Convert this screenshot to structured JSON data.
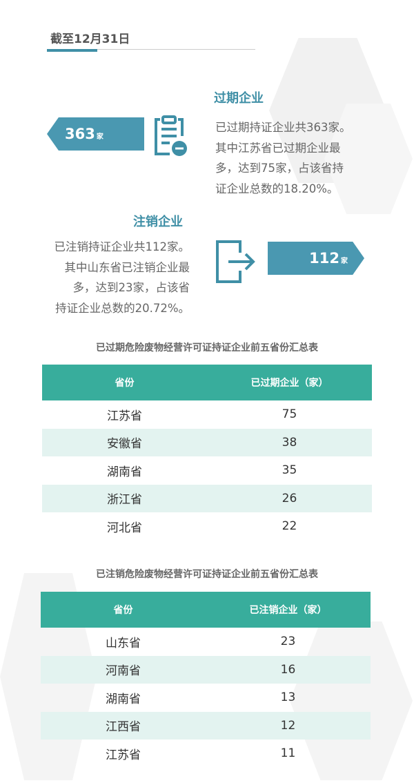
{
  "header": {
    "title": "截至12月31日"
  },
  "expired": {
    "heading": "过期企业",
    "count": "363",
    "unit": "家",
    "icon": "clipboard-minus-icon",
    "lines": [
      "已过期持证企业共363家。",
      "其中江苏省已过期企业最",
      "多，达到75家，占该省持",
      "证企业总数的18.20%。"
    ]
  },
  "cancelled": {
    "heading": "注销企业",
    "count": "112",
    "unit": "家",
    "icon": "exit-arrow-icon",
    "lines": [
      "已注销持证企业共112家。",
      "其中山东省已注销企业最",
      "多，达到23家，占该省",
      "持证企业总数的20.72%。"
    ]
  },
  "colors": {
    "accent": "#4a98b1",
    "table_header": "#38ad9c",
    "stripe": "#e3f3f0"
  },
  "table1": {
    "caption": "已过期危险废物经营许可证持证企业前五省份汇总表",
    "headers": [
      "省份",
      "已过期企业（家）"
    ],
    "rows": [
      [
        "江苏省",
        "75"
      ],
      [
        "安徽省",
        "38"
      ],
      [
        "湖南省",
        "35"
      ],
      [
        "浙江省",
        "26"
      ],
      [
        "河北省",
        "22"
      ]
    ]
  },
  "table2": {
    "caption": "已注销危险废物经营许可证持证企业前五省份汇总表",
    "headers": [
      "省份",
      "已注销企业（家）"
    ],
    "rows": [
      [
        "山东省",
        "23"
      ],
      [
        "河南省",
        "16"
      ],
      [
        "湖南省",
        "13"
      ],
      [
        "江西省",
        "12"
      ],
      [
        "江苏省",
        "11"
      ]
    ]
  }
}
